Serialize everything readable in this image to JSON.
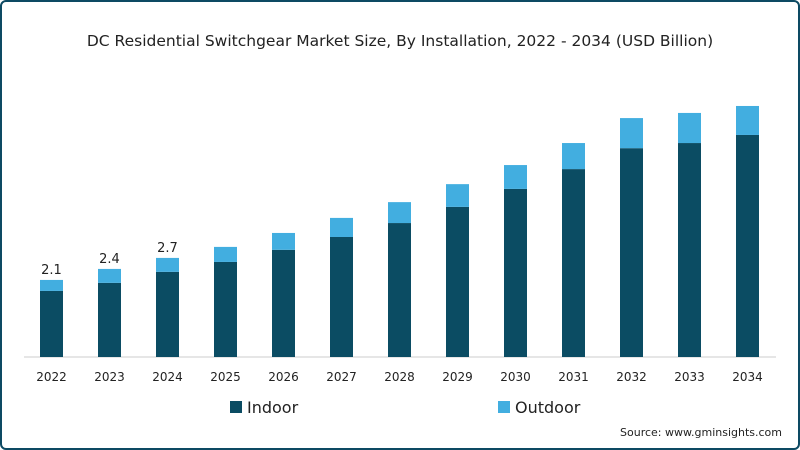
{
  "chart_data": {
    "type": "bar",
    "stacked": true,
    "title": "DC Residential Switchgear Market Size, By Installation, 2022 - 2034 (USD Billion)",
    "xlabel": "",
    "ylabel": "",
    "ylim": [
      0,
      7.5
    ],
    "grid": false,
    "legend_position": "bottom-center",
    "categories": [
      "2022",
      "2023",
      "2024",
      "2025",
      "2026",
      "2027",
      "2028",
      "2029",
      "2030",
      "2031",
      "2032",
      "2033",
      "2034"
    ],
    "series": [
      {
        "name": "Indoor",
        "color": "#0b4c63",
        "values": [
          1.8,
          2.02,
          2.32,
          2.59,
          2.92,
          3.27,
          3.65,
          4.09,
          4.58,
          5.12,
          5.69,
          5.83,
          6.05
        ]
      },
      {
        "name": "Outdoor",
        "color": "#42aee0",
        "values": [
          0.3,
          0.38,
          0.38,
          0.41,
          0.46,
          0.52,
          0.57,
          0.62,
          0.65,
          0.71,
          0.82,
          0.82,
          0.79
        ]
      }
    ],
    "data_labels": {
      "2022": "2.1",
      "2023": "2.4",
      "2024": "2.7"
    }
  },
  "source": "Source: www.gminsights.com"
}
